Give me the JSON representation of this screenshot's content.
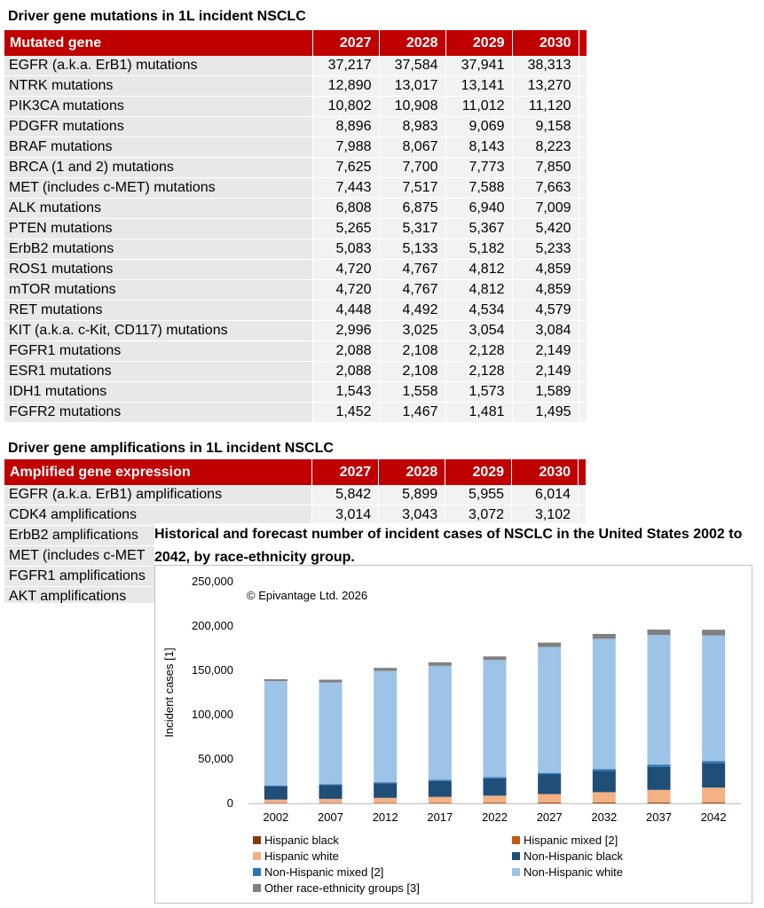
{
  "mutations": {
    "title": "Driver gene mutations in 1L  incident NSCLC",
    "header": "Mutated gene",
    "years": [
      "2027",
      "2028",
      "2029",
      "2030"
    ],
    "rows": [
      {
        "name": "EGFR (a.k.a. ErB1) mutations",
        "values": [
          "37,217",
          "37,584",
          "37,941",
          "38,313"
        ]
      },
      {
        "name": "NTRK mutations",
        "values": [
          "12,890",
          "13,017",
          "13,141",
          "13,270"
        ]
      },
      {
        "name": "PIK3CA mutations",
        "values": [
          "10,802",
          "10,908",
          "11,012",
          "11,120"
        ]
      },
      {
        "name": "PDGFR mutations",
        "values": [
          "8,896",
          "8,983",
          "9,069",
          "9,158"
        ]
      },
      {
        "name": "BRAF mutations",
        "values": [
          "7,988",
          "8,067",
          "8,143",
          "8,223"
        ]
      },
      {
        "name": "BRCA (1 and 2) mutations",
        "values": [
          "7,625",
          "7,700",
          "7,773",
          "7,850"
        ]
      },
      {
        "name": "MET (includes c-MET) mutations",
        "values": [
          "7,443",
          "7,517",
          "7,588",
          "7,663"
        ]
      },
      {
        "name": "ALK mutations",
        "values": [
          "6,808",
          "6,875",
          "6,940",
          "7,009"
        ]
      },
      {
        "name": "PTEN mutations",
        "values": [
          "5,265",
          "5,317",
          "5,367",
          "5,420"
        ]
      },
      {
        "name": "ErbB2 mutations",
        "values": [
          "5,083",
          "5,133",
          "5,182",
          "5,233"
        ]
      },
      {
        "name": "ROS1 mutations",
        "values": [
          "4,720",
          "4,767",
          "4,812",
          "4,859"
        ]
      },
      {
        "name": "mTOR mutations",
        "values": [
          "4,720",
          "4,767",
          "4,812",
          "4,859"
        ]
      },
      {
        "name": "RET mutations",
        "values": [
          "4,448",
          "4,492",
          "4,534",
          "4,579"
        ]
      },
      {
        "name": "KIT (a.k.a. c-Kit, CD117) mutations",
        "values": [
          "2,996",
          "3,025",
          "3,054",
          "3,084"
        ]
      },
      {
        "name": "FGFR1 mutations",
        "values": [
          "2,088",
          "2,108",
          "2,128",
          "2,149"
        ]
      },
      {
        "name": "ESR1 mutations",
        "values": [
          "2,088",
          "2,108",
          "2,128",
          "2,149"
        ]
      },
      {
        "name": "IDH1 mutations",
        "values": [
          "1,543",
          "1,558",
          "1,573",
          "1,589"
        ]
      },
      {
        "name": "FGFR2 mutations",
        "values": [
          "1,452",
          "1,467",
          "1,481",
          "1,495"
        ]
      }
    ]
  },
  "amplifications": {
    "title": "Driver gene amplifications in 1L  incident NSCLC",
    "header": "Amplified gene expression",
    "years": [
      "2027",
      "2028",
      "2029",
      "2030"
    ],
    "rows": [
      {
        "name": "EGFR (a.k.a. ErB1) amplifications",
        "values": [
          "5,842",
          "5,899",
          "5,955",
          "6,014"
        ]
      },
      {
        "name": "CDK4 amplifications",
        "values": [
          "3,014",
          "3,043",
          "3,072",
          "3,102"
        ]
      },
      {
        "name": "ErbB2 amplifications",
        "values": [
          "",
          "",
          "",
          ""
        ]
      },
      {
        "name": "MET (includes c-MET",
        "values": [
          "",
          "",
          "",
          ""
        ]
      },
      {
        "name": "FGFR1 amplifications",
        "values": [
          "",
          "",
          "",
          ""
        ]
      },
      {
        "name": "AKT amplifications",
        "values": [
          "",
          "",
          "",
          ""
        ]
      }
    ]
  },
  "chart_data": {
    "type": "bar",
    "title": "Historical and forecast number of incident cases of NSCLC in the United States 2002 to 2042, by race-ethnicity group.",
    "watermark": "© Epivantage Ltd. 2026",
    "ylabel": "Incident cases [1]",
    "xlabel": "",
    "ylim": [
      0,
      250000
    ],
    "yticks": [
      "0",
      "50,000",
      "100,000",
      "150,000",
      "200,000",
      "250,000"
    ],
    "ytick_values": [
      0,
      50000,
      100000,
      150000,
      200000,
      250000
    ],
    "stacked": true,
    "categories": [
      "2002",
      "2007",
      "2012",
      "2017",
      "2022",
      "2027",
      "2032",
      "2037",
      "2042"
    ],
    "series": [
      {
        "name": "Hispanic black",
        "color": "#843c0c",
        "values": [
          200,
          250,
          300,
          350,
          400,
          450,
          500,
          550,
          600
        ]
      },
      {
        "name": "Hispanic mixed [2]",
        "color": "#c55a11",
        "values": [
          300,
          350,
          400,
          450,
          500,
          550,
          600,
          650,
          700
        ]
      },
      {
        "name": "Hispanic white",
        "color": "#f4b183",
        "values": [
          3800,
          4500,
          5500,
          6500,
          7800,
          9500,
          11500,
          14000,
          16500
        ]
      },
      {
        "name": "Non-Hispanic black",
        "color": "#1f4e79",
        "values": [
          15000,
          15500,
          16500,
          18000,
          19500,
          22000,
          24000,
          26000,
          27500
        ]
      },
      {
        "name": "Non-Hispanic mixed [2]",
        "color": "#2e75b6",
        "values": [
          700,
          900,
          1100,
          1300,
          1500,
          1800,
          2000,
          2300,
          2500
        ]
      },
      {
        "name": "Non-Hispanic white",
        "color": "#9dc3e6",
        "values": [
          118000,
          115000,
          125500,
          128500,
          132000,
          142000,
          147000,
          146500,
          141500
        ]
      },
      {
        "name": "Other race-ethnicity groups [3]",
        "color": "#808080",
        "values": [
          2000,
          3000,
          3500,
          4000,
          4000,
          5000,
          5500,
          6000,
          6500
        ]
      }
    ],
    "legend_position": "bottom"
  }
}
